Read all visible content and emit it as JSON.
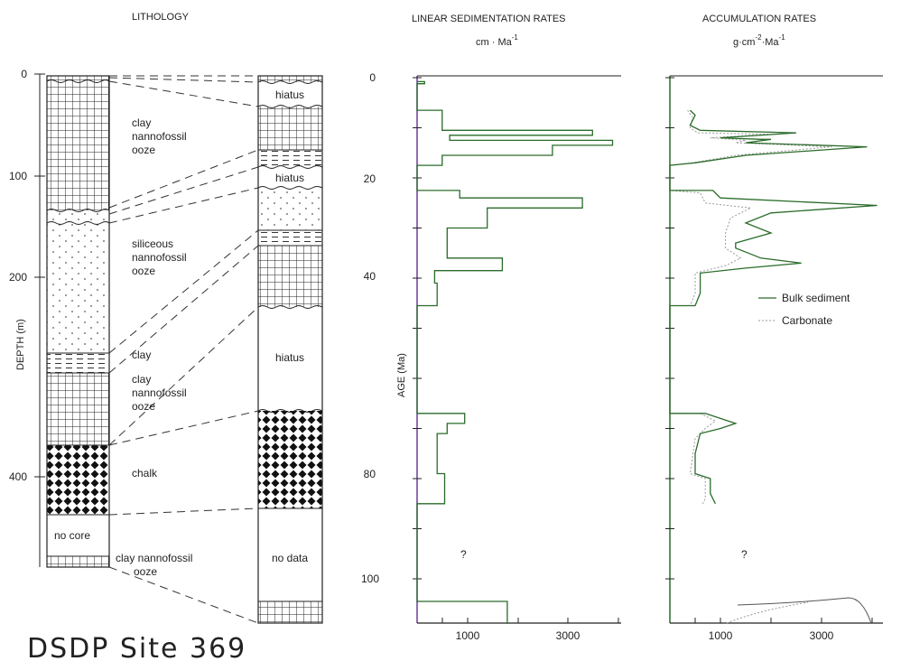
{
  "figure": {
    "site_title": "DSDP  Site  369",
    "headers": {
      "lithology": "LITHOLOGY",
      "lsr": "LINEAR SEDIMENTATION RATES",
      "lsr_unit": "cm · Ma",
      "lsr_unit_sup": "-1",
      "ar": "ACCUMULATION RATES",
      "ar_unit_a": "g·cm",
      "ar_unit_sup1": "-2",
      "ar_unit_b": "·Ma",
      "ar_unit_sup2": "-1"
    },
    "depth_axis": {
      "label": "DEPTH (m)",
      "ticks": [
        "0",
        "100",
        "200",
        "400"
      ]
    },
    "age_axis": {
      "label": "AGE (Ma)",
      "ticks": [
        "0",
        "20",
        "40",
        "60",
        "80",
        "100"
      ]
    },
    "depth_column_labels": [
      [
        "clay",
        "nannofossil",
        "ooze"
      ],
      [
        "siliceous",
        "nannofossil",
        "ooze"
      ],
      [
        "clay"
      ],
      [
        "clay",
        "nannofossil",
        "ooze"
      ],
      [
        "chalk"
      ],
      [
        "no core"
      ],
      [
        "clay nannofossil",
        "ooze"
      ]
    ],
    "age_column_labels": [
      "hiatus",
      "hiatus",
      "hiatus",
      "no data"
    ],
    "lsr_xticks": [
      "1000",
      "3000"
    ],
    "ar_xticks": [
      "1000",
      "3000"
    ],
    "legend": {
      "bulk": "Bulk sediment",
      "carbonate": "Carbonate"
    },
    "question_mark": "?"
  },
  "chart_data": [
    {
      "type": "line",
      "title": "LINEAR SEDIMENTATION RATES",
      "xlabel": "cm · Ma-1",
      "ylabel": "AGE (Ma)",
      "ylim": [
        0,
        110
      ],
      "x_ticks": [
        1000,
        3000
      ],
      "series": [
        {
          "points": [
            [
              0,
              0.8
            ],
            [
              150,
              0.8
            ],
            [
              150,
              1.2
            ],
            [
              0,
              1.2
            ],
            [
              0,
              6.5
            ],
            [
              500,
              6.5
            ],
            [
              500,
              10.5
            ],
            [
              3500,
              10.5
            ],
            [
              3500,
              11.5
            ],
            [
              650,
              11.5
            ],
            [
              650,
              12.5
            ],
            [
              3900,
              12.5
            ],
            [
              3900,
              13.5
            ],
            [
              2700,
              13.5
            ],
            [
              2700,
              15.5
            ],
            [
              500,
              15.5
            ],
            [
              500,
              17.5
            ],
            [
              0,
              17.5
            ],
            [
              0,
              22.5
            ],
            [
              850,
              22.5
            ],
            [
              850,
              24
            ],
            [
              3300,
              24
            ],
            [
              3300,
              26
            ],
            [
              1400,
              26
            ],
            [
              1400,
              30
            ],
            [
              600,
              30
            ],
            [
              600,
              36
            ],
            [
              1700,
              36
            ],
            [
              1700,
              38.5
            ],
            [
              350,
              38.5
            ],
            [
              350,
              41
            ],
            [
              400,
              41
            ],
            [
              400,
              45.5
            ],
            [
              0,
              45.5
            ],
            [
              0,
              67
            ],
            [
              950,
              67
            ],
            [
              950,
              69
            ],
            [
              600,
              69
            ],
            [
              600,
              71
            ],
            [
              400,
              71
            ],
            [
              400,
              79
            ],
            [
              550,
              79
            ],
            [
              550,
              85
            ],
            [
              0,
              85
            ],
            [
              0,
              104.5
            ],
            [
              1800,
              104.5
            ],
            [
              1800,
              109
            ]
          ]
        }
      ]
    },
    {
      "type": "line",
      "title": "ACCUMULATION RATES",
      "xlabel": "g·cm-2·Ma-1",
      "ylabel": "AGE (Ma)",
      "ylim": [
        0,
        110
      ],
      "x_ticks": [
        1000,
        3000
      ],
      "legend_position": "right",
      "series": [
        {
          "name": "Bulk sediment",
          "points": [
            [
              400,
              6.5
            ],
            [
              500,
              7.5
            ],
            [
              400,
              9.5
            ],
            [
              600,
              10.5
            ],
            [
              2500,
              11
            ],
            [
              1000,
              12
            ],
            [
              1800,
              12.3
            ],
            [
              2000,
              12.3
            ],
            [
              1500,
              13
            ],
            [
              3900,
              13.8
            ],
            [
              1500,
              15.5
            ],
            [
              500,
              17
            ],
            [
              0,
              17.5
            ],
            [
              0,
              22.5
            ],
            [
              850,
              22.5
            ],
            [
              1000,
              24
            ],
            [
              4100,
              25.5
            ],
            [
              2000,
              27
            ],
            [
              1500,
              29
            ],
            [
              2000,
              31
            ],
            [
              1300,
              33
            ],
            [
              1300,
              34
            ],
            [
              1800,
              36
            ],
            [
              2600,
              37
            ],
            [
              1500,
              38
            ],
            [
              600,
              39
            ],
            [
              600,
              43
            ],
            [
              500,
              45.5
            ],
            [
              0,
              45.5
            ],
            [
              0,
              67
            ],
            [
              700,
              67
            ],
            [
              1000,
              68
            ],
            [
              1300,
              69
            ],
            [
              1000,
              70
            ],
            [
              600,
              71
            ],
            [
              500,
              75
            ],
            [
              500,
              79
            ],
            [
              800,
              80
            ],
            [
              800,
              83
            ],
            [
              900,
              85
            ]
          ]
        },
        {
          "name": "Carbonate",
          "points": [
            [
              350,
              6.5
            ],
            [
              450,
              8
            ],
            [
              400,
              10
            ],
            [
              550,
              11
            ],
            [
              2000,
              11.3
            ],
            [
              800,
              12
            ],
            [
              1500,
              12.5
            ],
            [
              1300,
              13
            ],
            [
              3200,
              13.8
            ],
            [
              1300,
              15.5
            ],
            [
              450,
              17
            ],
            [
              0,
              17.5
            ],
            [
              0,
              22.5
            ],
            [
              600,
              23
            ],
            [
              700,
              25
            ],
            [
              1600,
              26
            ],
            [
              1200,
              28
            ],
            [
              1100,
              31
            ],
            [
              1100,
              34
            ],
            [
              1400,
              36
            ],
            [
              1100,
              37.5
            ],
            [
              500,
              39
            ],
            [
              500,
              43
            ],
            [
              400,
              45.5
            ],
            [
              0,
              45.5
            ],
            [
              0,
              67
            ],
            [
              600,
              67
            ],
            [
              900,
              68.5
            ],
            [
              700,
              70
            ],
            [
              500,
              72
            ],
            [
              400,
              79
            ],
            [
              700,
              80
            ],
            [
              700,
              84
            ],
            [
              650,
              85
            ]
          ]
        }
      ]
    }
  ]
}
